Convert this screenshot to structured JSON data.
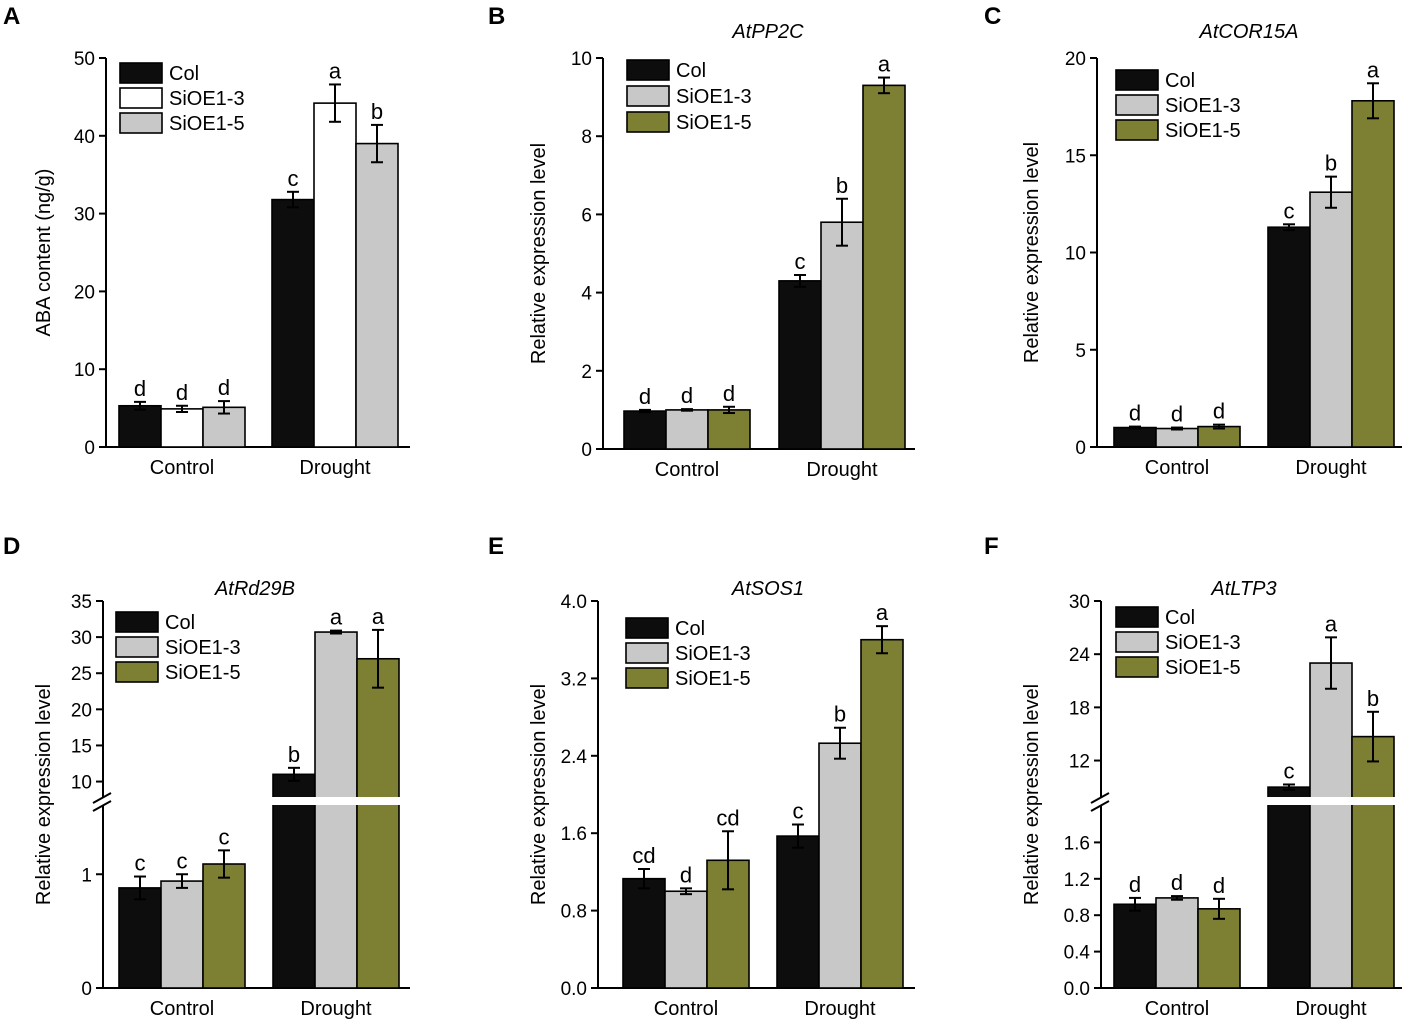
{
  "figure": {
    "colors": {
      "col": "#0d0d0d",
      "sioe13": "#c8c8c8",
      "sioe13_white": "#ffffff",
      "sioe15": "#7d7f32",
      "axis": "#000000"
    }
  },
  "chart_data": [
    {
      "type": "bar",
      "panel": "A",
      "title": "",
      "ylabel": "ABA content (ng/g)",
      "categories": [
        "Control",
        "Drought"
      ],
      "ylim": [
        0,
        50
      ],
      "yticks": [
        "0",
        "10",
        "20",
        "30",
        "40",
        "50"
      ],
      "series": [
        {
          "name": "Col",
          "color": "col",
          "values": [
            5.3,
            31.8
          ],
          "errors": [
            0.5,
            1.0
          ],
          "letters": [
            "d",
            "c"
          ]
        },
        {
          "name": "SiOE1-3",
          "color": "sioe13_white",
          "values": [
            4.9,
            44.2
          ],
          "errors": [
            0.4,
            2.4
          ],
          "letters": [
            "d",
            "a"
          ]
        },
        {
          "name": "SiOE1-5",
          "color": "sioe13",
          "values": [
            5.1,
            39.0
          ],
          "errors": [
            0.8,
            2.4
          ],
          "letters": [
            "d",
            "b"
          ]
        }
      ]
    },
    {
      "type": "bar",
      "panel": "B",
      "title": "AtPP2C",
      "ylabel": "Relative expression level",
      "categories": [
        "Control",
        "Drought"
      ],
      "ylim": [
        0,
        10
      ],
      "yticks": [
        "0",
        "2",
        "4",
        "6",
        "8",
        "10"
      ],
      "series": [
        {
          "name": "Col",
          "color": "col",
          "values": [
            0.97,
            4.3
          ],
          "errors": [
            0.03,
            0.15
          ],
          "letters": [
            "d",
            "c"
          ]
        },
        {
          "name": "SiOE1-3",
          "color": "sioe13",
          "values": [
            1.0,
            5.8
          ],
          "errors": [
            0.02,
            0.6
          ],
          "letters": [
            "d",
            "b"
          ]
        },
        {
          "name": "SiOE1-5",
          "color": "sioe15",
          "values": [
            1.0,
            9.3
          ],
          "errors": [
            0.08,
            0.2
          ],
          "letters": [
            "d",
            "a"
          ]
        }
      ]
    },
    {
      "type": "bar",
      "panel": "C",
      "title": "AtCOR15A",
      "ylabel": "Relative expression level",
      "categories": [
        "Control",
        "Drought"
      ],
      "ylim": [
        0,
        20
      ],
      "yticks": [
        "0",
        "5",
        "10",
        "15",
        "20"
      ],
      "series": [
        {
          "name": "Col",
          "color": "col",
          "values": [
            1.0,
            11.3
          ],
          "errors": [
            0.05,
            0.15
          ],
          "letters": [
            "d",
            "c"
          ]
        },
        {
          "name": "SiOE1-3",
          "color": "sioe13",
          "values": [
            0.95,
            13.1
          ],
          "errors": [
            0.05,
            0.8
          ],
          "letters": [
            "d",
            "b"
          ]
        },
        {
          "name": "SiOE1-5",
          "color": "sioe15",
          "values": [
            1.05,
            17.8
          ],
          "errors": [
            0.1,
            0.9
          ],
          "letters": [
            "d",
            "a"
          ]
        }
      ]
    },
    {
      "type": "bar",
      "panel": "D",
      "title": "AtRd29B",
      "ylabel": "Relative expression level",
      "categories": [
        "Control",
        "Drought"
      ],
      "broken_axis": true,
      "ylim_lower": [
        0,
        1.6
      ],
      "yticks_lower": [
        "0",
        "1"
      ],
      "ylim_upper": [
        8,
        35
      ],
      "yticks_upper": [
        "10",
        "15",
        "20",
        "25",
        "30",
        "35"
      ],
      "series": [
        {
          "name": "Col",
          "color": "col",
          "values": [
            0.88,
            11.0
          ],
          "errors": [
            0.1,
            0.9
          ],
          "letters": [
            "c",
            "b"
          ]
        },
        {
          "name": "SiOE1-3",
          "color": "sioe13",
          "values": [
            0.94,
            30.7
          ],
          "errors": [
            0.06,
            0.2
          ],
          "letters": [
            "c",
            "a"
          ]
        },
        {
          "name": "SiOE1-5",
          "color": "sioe15",
          "values": [
            1.09,
            27.0
          ],
          "errors": [
            0.12,
            4.0
          ],
          "letters": [
            "c",
            "a"
          ]
        }
      ]
    },
    {
      "type": "bar",
      "panel": "E",
      "title": "AtSOS1",
      "ylabel": "Relative expression level",
      "categories": [
        "Control",
        "Drought"
      ],
      "ylim": [
        0,
        4.0
      ],
      "yticks": [
        "0.0",
        "0.8",
        "1.6",
        "2.4",
        "3.2",
        "4.0"
      ],
      "series": [
        {
          "name": "Col",
          "color": "col",
          "values": [
            1.13,
            1.57
          ],
          "errors": [
            0.1,
            0.12
          ],
          "letters": [
            "cd",
            "c"
          ]
        },
        {
          "name": "SiOE1-3",
          "color": "sioe13",
          "values": [
            1.0,
            2.53
          ],
          "errors": [
            0.03,
            0.16
          ],
          "letters": [
            "d",
            "b"
          ]
        },
        {
          "name": "SiOE1-5",
          "color": "sioe15",
          "values": [
            1.32,
            3.6
          ],
          "errors": [
            0.3,
            0.14
          ],
          "letters": [
            "cd",
            "a"
          ]
        }
      ]
    },
    {
      "type": "bar",
      "panel": "F",
      "title": "AtLTP3",
      "ylabel": "Relative expression level",
      "categories": [
        "Control",
        "Drought"
      ],
      "broken_axis": true,
      "ylim_lower": [
        0,
        2.0
      ],
      "yticks_lower": [
        "0.0",
        "0.4",
        "0.8",
        "1.2",
        "1.6"
      ],
      "ylim_upper": [
        8,
        30
      ],
      "yticks_upper": [
        "12",
        "18",
        "24",
        "30"
      ],
      "series": [
        {
          "name": "Col",
          "color": "col",
          "values": [
            0.92,
            9.0
          ],
          "errors": [
            0.07,
            0.3
          ],
          "letters": [
            "d",
            "c"
          ]
        },
        {
          "name": "SiOE1-3",
          "color": "sioe13",
          "values": [
            0.99,
            23.0
          ],
          "errors": [
            0.02,
            2.9
          ],
          "letters": [
            "d",
            "a"
          ]
        },
        {
          "name": "SiOE1-5",
          "color": "sioe15",
          "values": [
            0.87,
            14.7
          ],
          "errors": [
            0.11,
            2.8
          ],
          "letters": [
            "d",
            "b"
          ]
        }
      ]
    }
  ]
}
